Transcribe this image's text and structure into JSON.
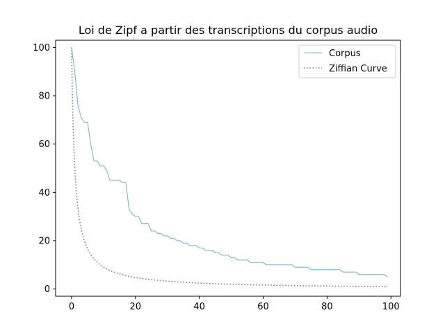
{
  "chart_data": {
    "type": "line",
    "title": "Loi de Zipf a partir des transcriptions du corpus audio",
    "xlabel": "",
    "ylabel": "",
    "xlim": [
      -5,
      103
    ],
    "ylim": [
      -3,
      103
    ],
    "xticks": [
      0,
      20,
      40,
      60,
      80,
      100
    ],
    "yticks": [
      0,
      20,
      40,
      60,
      80,
      100
    ],
    "grid": false,
    "legend_position": "top-right",
    "series": [
      {
        "name": "Corpus",
        "color": "#7fb3d5",
        "style": "solid",
        "x": [
          0,
          1,
          2,
          3,
          4,
          5,
          6,
          7,
          8,
          9,
          10,
          11,
          12,
          13,
          14,
          15,
          16,
          17,
          18,
          19,
          20,
          21,
          22,
          23,
          24,
          25,
          26,
          27,
          28,
          29,
          30,
          31,
          32,
          33,
          34,
          35,
          36,
          37,
          38,
          39,
          40,
          41,
          42,
          43,
          44,
          45,
          46,
          47,
          48,
          49,
          50,
          51,
          52,
          53,
          54,
          55,
          56,
          57,
          58,
          59,
          60,
          61,
          62,
          63,
          64,
          65,
          66,
          67,
          68,
          69,
          70,
          71,
          72,
          73,
          74,
          75,
          76,
          77,
          78,
          79,
          80,
          81,
          82,
          83,
          84,
          85,
          86,
          87,
          88,
          89,
          90,
          91,
          92,
          93,
          94,
          95,
          96,
          97,
          98,
          99
        ],
        "y": [
          100,
          90,
          76,
          71,
          69,
          69,
          60,
          53,
          53,
          51,
          51,
          49,
          45,
          45,
          45,
          45,
          44,
          44,
          33,
          31,
          30,
          30,
          27,
          27,
          27,
          24,
          24,
          23,
          23,
          22,
          22,
          21,
          21,
          20,
          20,
          19,
          19,
          18,
          18,
          18,
          17,
          17,
          16,
          16,
          16,
          15,
          15,
          14,
          14,
          14,
          13,
          13,
          12,
          12,
          12,
          12,
          11,
          11,
          11,
          11,
          11,
          10,
          10,
          10,
          10,
          10,
          10,
          10,
          10,
          10,
          9,
          9,
          9,
          9,
          9,
          8,
          8,
          8,
          8,
          8,
          8,
          8,
          8,
          8,
          8,
          7,
          7,
          7,
          7,
          7,
          6,
          6,
          6,
          6,
          6,
          6,
          6,
          6,
          6,
          5
        ]
      },
      {
        "name": "Ziffian Curve",
        "color": "#808080",
        "style": "dotted",
        "formula": "100/(x+1)"
      }
    ]
  }
}
